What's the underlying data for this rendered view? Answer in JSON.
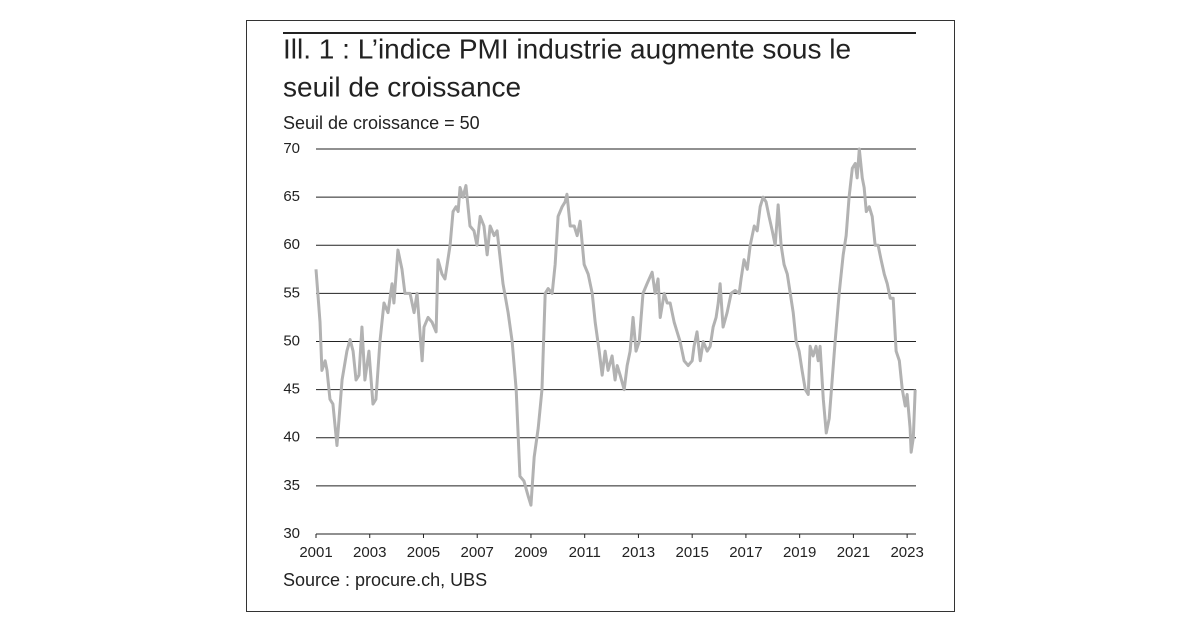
{
  "chart_data": {
    "type": "line",
    "title_lines": [
      "Ill. 1 : L’indice PMI industrie augmente sous le",
      "seuil de croissance"
    ],
    "subtitle": "Seuil de croissance = 50",
    "source": "Source : procure.ch, UBS",
    "color": "#b2b2b2",
    "grid": true,
    "xlim": [
      2001,
      2023.33
    ],
    "xticks": [
      2001,
      2003,
      2005,
      2007,
      2009,
      2011,
      2013,
      2015,
      2017,
      2019,
      2021,
      2023
    ],
    "ylim": [
      30,
      70
    ],
    "yticks": [
      30,
      35,
      40,
      45,
      50,
      55,
      60,
      65,
      70
    ],
    "x": [
      2001.0,
      2001.15,
      2001.22,
      2001.34,
      2001.41,
      2001.52,
      2001.63,
      2001.78,
      2001.97,
      2002.15,
      2002.27,
      2002.38,
      2002.49,
      2002.6,
      2002.71,
      2002.82,
      2002.97,
      2003.12,
      2003.23,
      2003.38,
      2003.53,
      2003.68,
      2003.83,
      2003.9,
      2004.05,
      2004.2,
      2004.31,
      2004.5,
      2004.65,
      2004.76,
      2004.95,
      2005.02,
      2005.17,
      2005.32,
      2005.47,
      2005.54,
      2005.69,
      2005.8,
      2005.99,
      2006.1,
      2006.21,
      2006.29,
      2006.36,
      2006.47,
      2006.58,
      2006.73,
      2006.88,
      2006.99,
      2007.11,
      2007.25,
      2007.37,
      2007.48,
      2007.63,
      2007.74,
      2007.96,
      2008.15,
      2008.3,
      2008.45,
      2008.59,
      2008.74,
      2008.89,
      2009.0,
      2009.12,
      2009.27,
      2009.41,
      2009.53,
      2009.64,
      2009.79,
      2009.9,
      2010.01,
      2010.16,
      2010.27,
      2010.34,
      2010.46,
      2010.61,
      2010.72,
      2010.83,
      2010.98,
      2011.13,
      2011.28,
      2011.39,
      2011.54,
      2011.65,
      2011.76,
      2011.87,
      2012.02,
      2012.13,
      2012.21,
      2012.32,
      2012.47,
      2012.58,
      2012.69,
      2012.8,
      2012.91,
      2013.03,
      2013.17,
      2013.32,
      2013.51,
      2013.62,
      2013.73,
      2013.81,
      2013.96,
      2014.07,
      2014.18,
      2014.33,
      2014.44,
      2014.55,
      2014.7,
      2014.85,
      2015.0,
      2015.07,
      2015.18,
      2015.3,
      2015.41,
      2015.56,
      2015.67,
      2015.78,
      2015.89,
      2015.97,
      2016.04,
      2016.15,
      2016.3,
      2016.45,
      2016.6,
      2016.75,
      2016.82,
      2016.93,
      2017.05,
      2017.16,
      2017.31,
      2017.42,
      2017.53,
      2017.64,
      2017.75,
      2017.86,
      2017.98,
      2018.09,
      2018.2,
      2018.31,
      2018.42,
      2018.54,
      2018.65,
      2018.76,
      2018.87,
      2018.98,
      2019.09,
      2019.21,
      2019.32,
      2019.39,
      2019.5,
      2019.61,
      2019.69,
      2019.76,
      2019.88,
      2019.99,
      2020.1,
      2020.21,
      2020.32,
      2020.47,
      2020.62,
      2020.73,
      2020.84,
      2020.96,
      2021.07,
      2021.14,
      2021.22,
      2021.33,
      2021.4,
      2021.48,
      2021.59,
      2021.7,
      2021.81,
      2021.92,
      2022.03,
      2022.15,
      2022.26,
      2022.37,
      2022.48,
      2022.59,
      2022.71,
      2022.82,
      2022.93,
      2023.0,
      2023.11,
      2023.15,
      2023.23,
      2023.3
    ],
    "values": [
      57.5,
      52,
      47,
      48,
      47,
      44,
      43.5,
      39.2,
      46,
      49,
      50.2,
      49,
      46,
      46.5,
      51.5,
      46,
      49,
      43.5,
      44,
      50,
      54,
      53,
      56,
      54,
      59.5,
      57.5,
      55,
      55,
      53,
      55,
      48,
      51.5,
      52.5,
      52,
      51,
      58.5,
      57,
      56.5,
      60,
      63.5,
      64,
      63.5,
      66,
      65,
      66.2,
      62,
      61.5,
      60,
      63,
      62,
      59,
      62,
      61,
      61.5,
      56,
      53,
      50,
      45,
      36,
      35.5,
      34,
      33,
      38,
      41,
      45,
      55,
      55.5,
      55,
      58,
      63,
      64,
      64.5,
      65.3,
      62,
      62,
      61,
      62.5,
      58,
      57,
      55,
      52,
      49,
      46.5,
      49,
      47,
      48.5,
      46,
      47.5,
      46.5,
      45,
      47.5,
      49,
      52.5,
      49,
      50,
      55,
      56,
      57.2,
      55,
      56.5,
      52.5,
      55,
      54,
      54,
      52,
      51,
      50,
      48,
      47.5,
      48,
      49.5,
      51,
      48,
      50,
      49,
      49.5,
      51.5,
      52.5,
      54,
      56,
      51.5,
      53,
      55,
      55.3,
      55,
      56.5,
      58.5,
      57.5,
      60,
      62,
      61.5,
      64,
      65,
      64.5,
      63,
      61.5,
      60,
      64.2,
      60,
      58,
      57,
      55,
      53,
      50,
      49,
      47,
      45,
      44.5,
      49.5,
      48.5,
      49.5,
      48,
      49.5,
      44,
      40.5,
      42,
      46,
      50,
      55,
      59,
      61,
      65,
      68,
      68.5,
      67,
      70,
      67,
      66,
      63.5,
      64,
      63,
      60,
      60,
      58.5,
      57,
      56,
      54.5,
      54.5,
      49,
      48,
      45,
      43.3,
      44.5,
      41,
      38.5,
      40,
      45
    ]
  }
}
